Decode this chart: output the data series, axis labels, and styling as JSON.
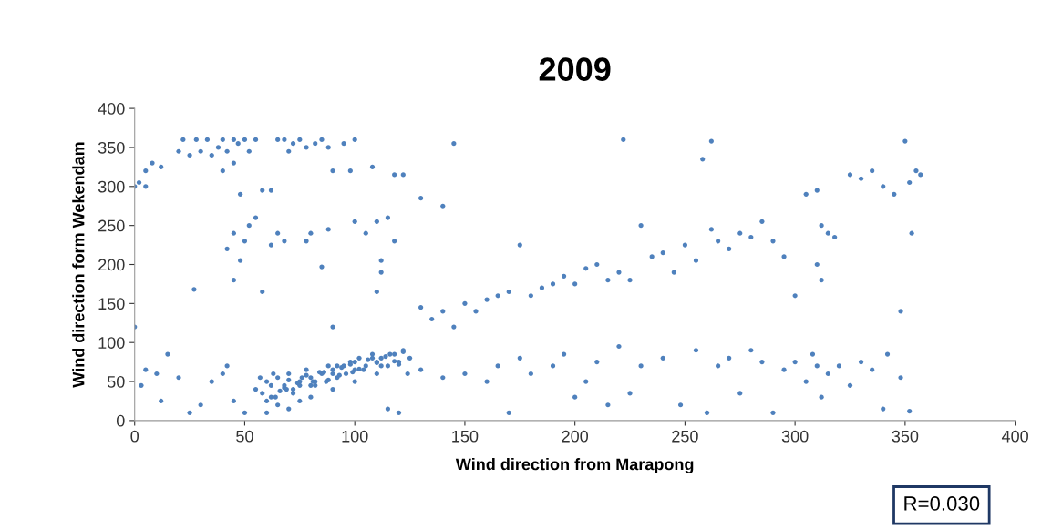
{
  "chart_data": {
    "type": "scatter",
    "title": "2009",
    "xlabel": "Wind direction from Marapong",
    "ylabel": "Wind direction form Wekendam",
    "xlim": [
      0,
      400
    ],
    "xticks": [
      0,
      50,
      100,
      150,
      200,
      250,
      300,
      350,
      400
    ],
    "ylim": [
      0,
      400
    ],
    "yticks": [
      0,
      50,
      100,
      150,
      200,
      250,
      300,
      350,
      400
    ],
    "grid": false,
    "marker": "circle",
    "legend": false,
    "annotations": [
      "R=0.030"
    ],
    "series": [
      {
        "color": "#4f81bd",
        "x": [
          0,
          2,
          5,
          5,
          8,
          12,
          20,
          22,
          25,
          28,
          30,
          33,
          35,
          38,
          40,
          42,
          45,
          47,
          50,
          52,
          55,
          45,
          40,
          48,
          58,
          62,
          65,
          68,
          70,
          72,
          75,
          78,
          82,
          85,
          88,
          95,
          100,
          90,
          98,
          108,
          118,
          122,
          130,
          140,
          145,
          222,
          262,
          258,
          350,
          42,
          45,
          50,
          52,
          55,
          48,
          58,
          27,
          65,
          68,
          62,
          80,
          78,
          85,
          88,
          100,
          105,
          110,
          115,
          118,
          112,
          110,
          112,
          45,
          0,
          130,
          135,
          140,
          145,
          150,
          155,
          160,
          165,
          170,
          175,
          180,
          185,
          190,
          195,
          200,
          205,
          210,
          215,
          220,
          225,
          230,
          235,
          240,
          245,
          250,
          255,
          262,
          265,
          270,
          275,
          280,
          285,
          290,
          295,
          300,
          305,
          310,
          312,
          315,
          310,
          312,
          318,
          325,
          330,
          335,
          340,
          345,
          352,
          355,
          357,
          353,
          348,
          55,
          60,
          62,
          65,
          68,
          70,
          72,
          75,
          78,
          80,
          82,
          85,
          88,
          90,
          92,
          95,
          98,
          100,
          102,
          105,
          108,
          110,
          112,
          115,
          118,
          120,
          122,
          125,
          65,
          70,
          75,
          60,
          80,
          90,
          100,
          110,
          50,
          45,
          40,
          42,
          35,
          30,
          25,
          20,
          15,
          10,
          5,
          3,
          12,
          120,
          115,
          90,
          130,
          140,
          150,
          160,
          165,
          170,
          175,
          180,
          190,
          195,
          200,
          205,
          210,
          215,
          220,
          225,
          230,
          240,
          248,
          255,
          260,
          265,
          270,
          275,
          280,
          285,
          290,
          295,
          300,
          305,
          308,
          310,
          312,
          315,
          320,
          325,
          330,
          335,
          340,
          342,
          348,
          352,
          58,
          62,
          66,
          70,
          74,
          78,
          82,
          86,
          90,
          94,
          98,
          102,
          106,
          110,
          114,
          118,
          122,
          60,
          64,
          68,
          72,
          76,
          80,
          84,
          88,
          92,
          96,
          100,
          104,
          108,
          112,
          116,
          120,
          124,
          57,
          63,
          69,
          75,
          81,
          87,
          93,
          99
        ],
        "values": [
          300,
          305,
          300,
          320,
          330,
          325,
          345,
          360,
          340,
          360,
          345,
          360,
          340,
          350,
          360,
          345,
          360,
          355,
          360,
          345,
          360,
          330,
          320,
          290,
          295,
          295,
          360,
          360,
          345,
          355,
          360,
          350,
          355,
          360,
          350,
          355,
          360,
          320,
          320,
          325,
          315,
          315,
          285,
          275,
          355,
          360,
          358,
          335,
          358,
          220,
          240,
          230,
          250,
          260,
          205,
          165,
          168,
          240,
          230,
          225,
          240,
          230,
          197,
          245,
          255,
          240,
          255,
          260,
          230,
          205,
          165,
          190,
          180,
          120,
          145,
          130,
          140,
          120,
          150,
          140,
          155,
          160,
          165,
          225,
          160,
          170,
          175,
          185,
          175,
          195,
          200,
          180,
          190,
          180,
          250,
          210,
          215,
          190,
          225,
          205,
          245,
          230,
          220,
          240,
          235,
          255,
          230,
          210,
          160,
          290,
          295,
          250,
          240,
          200,
          180,
          235,
          315,
          310,
          320,
          300,
          290,
          305,
          320,
          315,
          240,
          140,
          40,
          50,
          30,
          55,
          45,
          60,
          40,
          50,
          65,
          55,
          45,
          60,
          70,
          65,
          55,
          70,
          75,
          65,
          80,
          70,
          85,
          75,
          80,
          70,
          85,
          75,
          90,
          80,
          20,
          15,
          25,
          10,
          30,
          40,
          50,
          60,
          10,
          25,
          60,
          70,
          50,
          20,
          10,
          55,
          85,
          60,
          65,
          45,
          25,
          10,
          15,
          120,
          65,
          55,
          60,
          50,
          70,
          10,
          80,
          60,
          70,
          85,
          30,
          50,
          75,
          20,
          95,
          35,
          70,
          80,
          20,
          90,
          10,
          70,
          80,
          35,
          90,
          75,
          10,
          65,
          75,
          50,
          85,
          70,
          30,
          60,
          70,
          45,
          75,
          65,
          15,
          85,
          55,
          12,
          35,
          45,
          38,
          52,
          48,
          58,
          50,
          62,
          60,
          68,
          72,
          66,
          78,
          74,
          82,
          76,
          88,
          25,
          30,
          42,
          35,
          55,
          45,
          62,
          52,
          70,
          60,
          75,
          65,
          80,
          70,
          85,
          72,
          60,
          55,
          60,
          40,
          45,
          50,
          50,
          58,
          62
        ]
      }
    ]
  }
}
